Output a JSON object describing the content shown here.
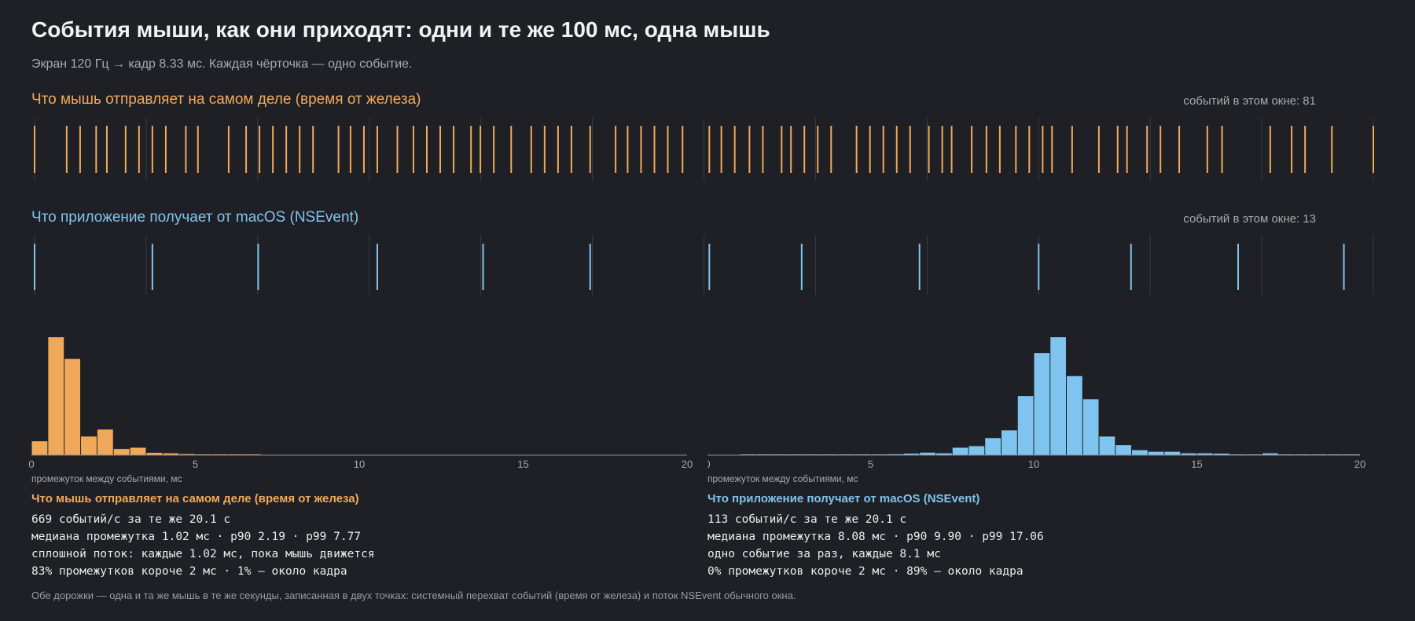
{
  "title": "События мыши, как они приходят: одни и те же 100 мс, одна мышь",
  "subtitle": "Экран 120 Гц → кадр 8.33 мс. Каждая чёрточка — одно событие.",
  "colors": {
    "background": "#1f2025",
    "orange": "#f0a95a",
    "blue": "#7fc4ee",
    "grid": "#3a3b42",
    "axis": "#8a8a90"
  },
  "lanes": {
    "hardware": {
      "title": "Что мышь отправляет на самом деле (время от железа)",
      "count_label": "событий в этом окне: 81"
    },
    "nsevent": {
      "title": "Что приложение получает от macOS (NSEvent)",
      "count_label": "событий в этом окне: 13"
    }
  },
  "histograms": {
    "hardware": {
      "xlabel": "промежуток между событиями, мс",
      "ticks": [
        "0",
        "5",
        "10",
        "15",
        "20"
      ]
    },
    "nsevent": {
      "xlabel": "промежуток между событиями, мс",
      "ticks": [
        "0",
        "5",
        "10",
        "15",
        "20"
      ]
    }
  },
  "stats": {
    "hardware": {
      "title": "Что мышь отправляет на самом деле (время от железа)",
      "lines": [
        "669 событий/с за те же 20.1 с",
        "медиана промежутка 1.02 мс · p90 2.19 · p99 7.77",
        "сплошной поток: каждые 1.02 мс, пока мышь движется",
        "83% промежутков короче 2 мс · 1% — около кадра"
      ]
    },
    "nsevent": {
      "title": "Что приложение получает от macOS (NSEvent)",
      "lines": [
        "113 событий/с за те же 20.1 с",
        "медиана промежутка 8.08 мс · p90 9.90 · p99 17.06",
        "одно событие за раз, каждые 8.1 мс",
        "0% промежутков короче 2 мс · 89% — около кадра"
      ]
    }
  },
  "footnote": "Обе дорожки — одна и та же мышь в те же секунды, записанная в двух точках: системный перехват событий (время от железа) и поток NSEvent обычного окна.",
  "chart_data": [
    {
      "type": "scatter",
      "name": "hardware-event-timeline",
      "xlim": [
        0,
        100
      ],
      "x": [
        0,
        2.4,
        3.4,
        4.6,
        5.4,
        6.8,
        7.8,
        8.8,
        9.8,
        11.3,
        12.2,
        14.5,
        15.8,
        16.8,
        17.8,
        18.8,
        19.8,
        20.8,
        22.7,
        23.6,
        24.6,
        25.6,
        27.1,
        28.3,
        29.3,
        30.3,
        31.3,
        32.6,
        33.3,
        34.3,
        35.6,
        37.1,
        38.1,
        39.1,
        40.1,
        41.5,
        43.4,
        44.3,
        45.3,
        46.3,
        47.3,
        48.4,
        50.4,
        51.3,
        52.3,
        53.4,
        54.4,
        55.8,
        56.5,
        57.5,
        58.5,
        59.5,
        61.4,
        62.4,
        63.4,
        64.4,
        65.4,
        66.8,
        67.8,
        68.5,
        70.0,
        71.1,
        72.1,
        73.3,
        74.3,
        75.3,
        76.0,
        77.5,
        79.5,
        80.9,
        81.6,
        83.1,
        84.1,
        85.5,
        87.6,
        88.7,
        92.3,
        93.9,
        94.9,
        96.9,
        100
      ]
    },
    {
      "type": "scatter",
      "name": "nsevent-event-timeline",
      "xlim": [
        0,
        100
      ],
      "x": [
        0,
        8.8,
        16.7,
        25.6,
        33.5,
        41.5,
        50.4,
        57.3,
        66.1,
        75.0,
        81.9,
        89.9,
        97.8
      ]
    },
    {
      "type": "bar",
      "name": "hardware-interval-histogram",
      "xlabel": "промежуток между событиями, мс",
      "xlim": [
        0,
        20
      ],
      "bin_width": 0.5,
      "values": [
        90,
        760,
        620,
        120,
        165,
        40,
        48,
        15,
        12,
        7,
        4,
        2,
        1,
        1,
        0,
        0,
        0,
        0,
        0,
        0,
        0,
        0,
        0,
        0,
        0,
        0,
        0,
        0,
        0,
        0,
        0,
        0,
        0,
        0,
        0,
        0,
        0,
        0,
        0,
        0
      ]
    },
    {
      "type": "bar",
      "name": "nsevent-interval-histogram",
      "xlabel": "промежуток между событиями, мс",
      "xlim": [
        0,
        20
      ],
      "bin_width": 0.5,
      "values": [
        0,
        0,
        1,
        1,
        1,
        1,
        2,
        2,
        1,
        3,
        3,
        6,
        10,
        16,
        12,
        48,
        58,
        110,
        160,
        380,
        658,
        760,
        510,
        360,
        120,
        65,
        32,
        22,
        22,
        12,
        12,
        10,
        4,
        4,
        12,
        5,
        2,
        3,
        1,
        1
      ]
    }
  ]
}
